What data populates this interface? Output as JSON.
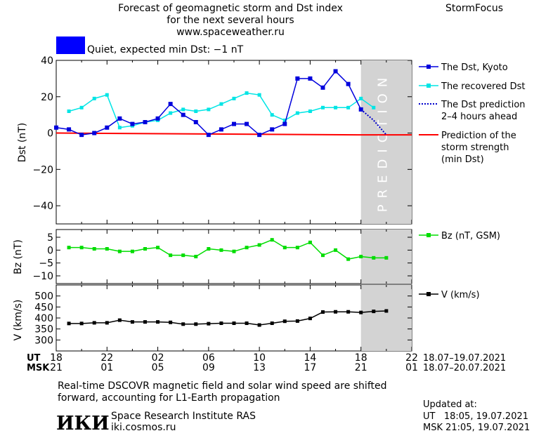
{
  "header": {
    "title_line1": "Forecast of geomagnetic storm and Dst index",
    "title_line2": "for the next several hours",
    "website": "www.spaceweather.ru",
    "brand": "StormFocus",
    "status_text": "Quiet, expected min Dst: −1 nT",
    "status_color": "#0000ff"
  },
  "prediction_label": "PREDICTION",
  "legend": {
    "dst_kyoto": "The Dst, Kyoto",
    "dst_recovered": "The recovered Dst",
    "dst_prediction_1": "The Dst prediction",
    "dst_prediction_2": "2–4 hours ahead",
    "storm_1": "Prediction of the",
    "storm_2": "storm strength",
    "storm_3": "(min Dst)",
    "bz": "Bz (nT, GSM)",
    "v": "V (km/s)"
  },
  "time_axis": {
    "ut_label": "UT",
    "msk_label": "MSK",
    "ut_ticks": [
      "18",
      "22",
      "02",
      "06",
      "10",
      "14",
      "18",
      "22"
    ],
    "msk_ticks": [
      "21",
      "01",
      "05",
      "09",
      "13",
      "17",
      "21",
      "01"
    ],
    "ut_range": "18.07–19.07.2021",
    "msk_range": "18.07–20.07.2021"
  },
  "footer": {
    "note_line1": "Real-time DSCOVR magnetic field and solar wind speed are shifted",
    "note_line2": "forward, accounting for L1-Earth propagation",
    "logo_text": "ИКИ",
    "institute": "Space Research Institute RAS",
    "institute_site": "iki.cosmos.ru",
    "updated_label": "Updated at:",
    "updated_ut": "UT   18:05, 19.07.2021",
    "updated_msk": "MSK 21:05, 19.07.2021"
  },
  "colors": {
    "kyoto": "#0000dd",
    "recovered": "#00e5e5",
    "prediction": "#0000cc",
    "storm": "#ff0000",
    "bz": "#00dd00",
    "v": "#000000",
    "prediction_bg": "#d3d3d3"
  },
  "chart_data": [
    {
      "type": "line",
      "ylabel": "Dst (nT)",
      "ylim": [
        -50,
        40
      ],
      "yticks": [
        40,
        20,
        0,
        -20,
        -40
      ],
      "xlim": [
        0,
        28
      ],
      "prediction_start": 24,
      "series": [
        {
          "name": "The Dst, Kyoto",
          "x": [
            0,
            1,
            2,
            3,
            4,
            5,
            6,
            7,
            8,
            9,
            10,
            11,
            12,
            13,
            14,
            15,
            16,
            17,
            18,
            19,
            20,
            21,
            22,
            23,
            24
          ],
          "y": [
            3,
            2,
            -1,
            0,
            3,
            8,
            5,
            6,
            8,
            16,
            10,
            6,
            -1,
            2,
            5,
            5,
            -1,
            2,
            5,
            30,
            30,
            25,
            34,
            27,
            13
          ]
        },
        {
          "name": "The recovered Dst",
          "x": [
            1,
            2,
            3,
            4,
            5,
            6,
            7,
            8,
            9,
            10,
            11,
            12,
            13,
            14,
            15,
            16,
            17,
            18,
            19,
            20,
            21,
            22,
            23,
            24,
            25
          ],
          "y": [
            12,
            14,
            19,
            21,
            3,
            4,
            6,
            7,
            11,
            13,
            12,
            13,
            16,
            19,
            22,
            21,
            10,
            7,
            11,
            12,
            14,
            14,
            14,
            19,
            14
          ]
        },
        {
          "name": "The Dst prediction 2–4 hours ahead",
          "x": [
            24,
            25,
            26
          ],
          "y": [
            13,
            7,
            -1
          ]
        },
        {
          "name": "Prediction of the storm strength (min Dst)",
          "x": [
            0,
            24,
            28
          ],
          "y": [
            0,
            -1,
            -1
          ]
        }
      ]
    },
    {
      "type": "line",
      "ylabel": "Bz (nT)",
      "ylim": [
        -13,
        8
      ],
      "yticks": [
        5,
        0,
        -5,
        -10
      ],
      "series": [
        {
          "name": "Bz (nT, GSM)",
          "x": [
            1,
            2,
            3,
            4,
            5,
            6,
            7,
            8,
            9,
            10,
            11,
            12,
            13,
            14,
            15,
            16,
            17,
            18,
            19,
            20,
            21,
            22,
            23,
            24,
            25,
            26
          ],
          "y": [
            1,
            1,
            0.5,
            0.5,
            -0.5,
            -0.5,
            0.5,
            1,
            -2,
            -2,
            -2.5,
            0.5,
            0,
            -0.5,
            1,
            2,
            4,
            1,
            1,
            3,
            -2,
            0,
            -3.5,
            -2.5,
            -3,
            -3
          ]
        }
      ]
    },
    {
      "type": "line",
      "ylabel": "V (km/s)",
      "ylim": [
        250,
        550
      ],
      "yticks": [
        500,
        450,
        400,
        350,
        300
      ],
      "series": [
        {
          "name": "V (km/s)",
          "x": [
            1,
            2,
            3,
            4,
            5,
            6,
            7,
            8,
            9,
            10,
            11,
            12,
            13,
            14,
            15,
            16,
            17,
            18,
            19,
            20,
            21,
            22,
            23,
            24,
            25,
            26
          ],
          "y": [
            375,
            375,
            378,
            378,
            390,
            382,
            382,
            382,
            380,
            372,
            372,
            374,
            376,
            376,
            376,
            368,
            376,
            385,
            386,
            398,
            427,
            428,
            428,
            425,
            430,
            432
          ]
        }
      ]
    }
  ]
}
